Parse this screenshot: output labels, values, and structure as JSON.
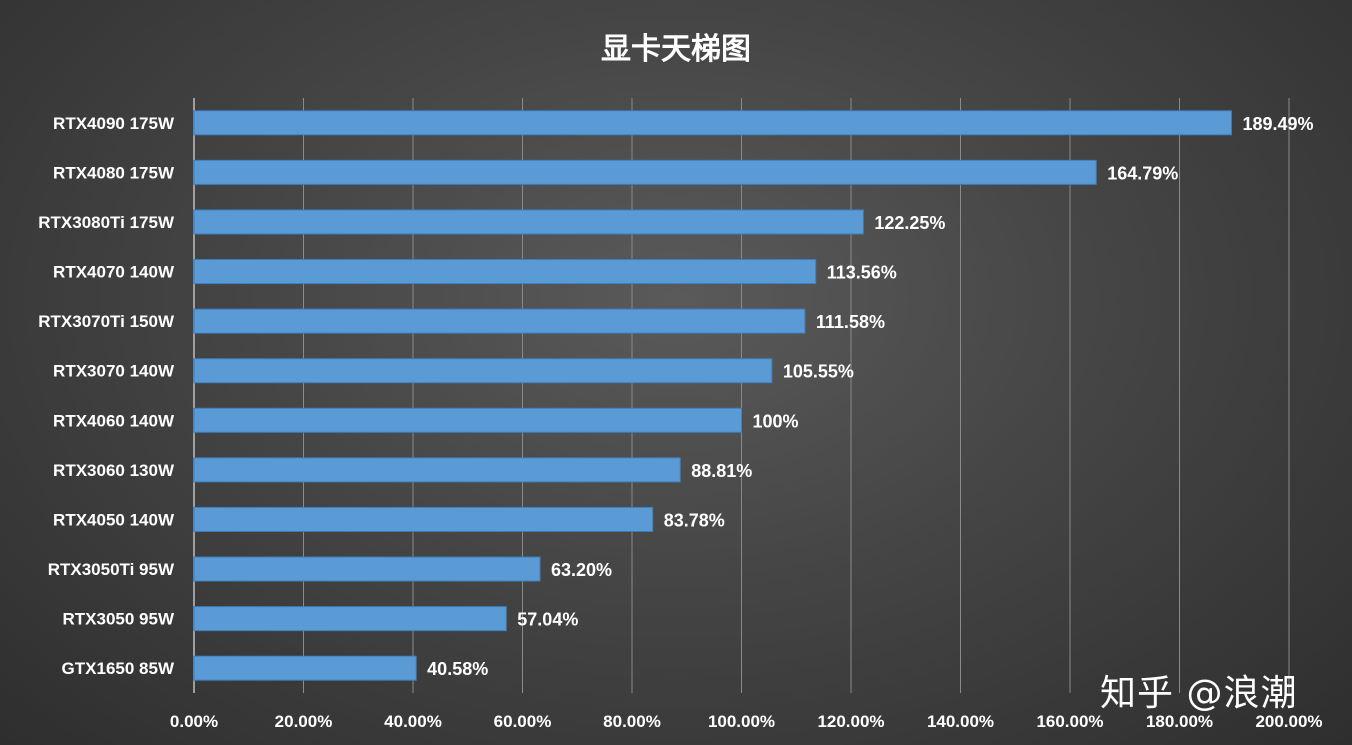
{
  "watermark": "知乎 @浪潮",
  "colors": {
    "bar": "#5b9bd5",
    "bar_edge": "#3d7fc0",
    "grid": "#8a8a8a",
    "text": "#ffffff"
  },
  "chart_data": {
    "type": "bar",
    "orientation": "horizontal",
    "title": "显卡天梯图",
    "xlabel": "",
    "ylabel": "",
    "xlim": [
      0,
      200
    ],
    "grid": true,
    "legend": "none",
    "categories": [
      "RTX4090 175W",
      "RTX4080 175W",
      "RTX3080Ti 175W",
      "RTX4070 140W",
      "RTX3070Ti 150W",
      "RTX3070 140W",
      "RTX4060 140W",
      "RTX3060 130W",
      "RTX4050 140W",
      "RTX3050Ti 95W",
      "RTX3050 95W",
      "GTX1650 85W"
    ],
    "values": [
      189.49,
      164.79,
      122.25,
      113.56,
      111.58,
      105.55,
      100,
      88.81,
      83.78,
      63.2,
      57.04,
      40.58
    ],
    "data_labels": [
      "189.49%",
      "164.79%",
      "122.25%",
      "113.56%",
      "111.58%",
      "105.55%",
      "100%",
      "88.81%",
      "83.78%",
      "63.20%",
      "57.04%",
      "40.58%"
    ],
    "ticks": [
      0,
      20,
      40,
      60,
      80,
      100,
      120,
      140,
      160,
      180,
      200
    ],
    "tick_labels": [
      "0.00%",
      "20.00%",
      "40.00%",
      "60.00%",
      "80.00%",
      "100.00%",
      "120.00%",
      "140.00%",
      "160.00%",
      "180.00%",
      "200.00%"
    ]
  }
}
